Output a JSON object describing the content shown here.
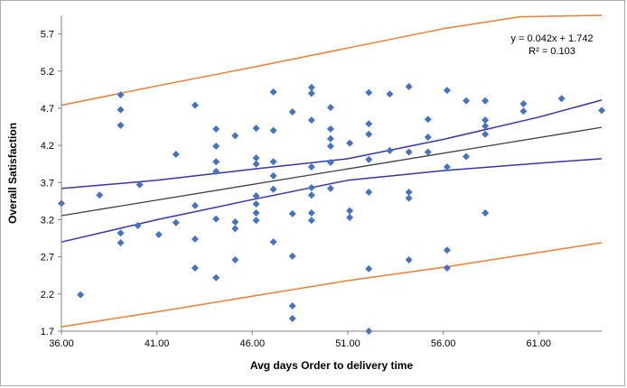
{
  "chart_data": {
    "type": "scatter",
    "title": "",
    "xlabel": "Avg days Order to delivery time",
    "ylabel": "Overall Satisfaction",
    "xlim": [
      36,
      64.3
    ],
    "ylim": [
      1.7,
      5.95
    ],
    "grid": false,
    "x_ticks": [
      36,
      41,
      46,
      51,
      56,
      61
    ],
    "x_tick_labels": [
      "36.00",
      "41.00",
      "46.00",
      "51.00",
      "56.00",
      "61.00"
    ],
    "y_ticks": [
      1.7,
      2.2,
      2.7,
      3.2,
      3.7,
      4.2,
      4.7,
      5.2,
      5.7
    ],
    "y_tick_labels": [
      "1.7",
      "2.2",
      "2.7",
      "3.2",
      "3.7",
      "4.2",
      "4.7",
      "5.2",
      "5.7"
    ],
    "annotation": {
      "line1": "y = 0.042x + 1.742",
      "line2": "R² = 0.103"
    },
    "trendline": {
      "slope": 0.042,
      "intercept": 1.742,
      "r_squared": 0.103,
      "color": "#404040"
    },
    "colors": {
      "marker": "#4472C4",
      "confidence_band": "#3535AE",
      "prediction_band": "#ED7D31",
      "axis": "#808080",
      "trend": "#404040"
    },
    "series": [
      {
        "name": "satisfaction-observations",
        "type": "scatter",
        "marker": "diamond",
        "color": "#4472C4",
        "points": [
          [
            36.0,
            3.42
          ],
          [
            37.0,
            2.19
          ],
          [
            38.0,
            3.53
          ],
          [
            39.1,
            4.88
          ],
          [
            39.1,
            4.68
          ],
          [
            39.1,
            4.47
          ],
          [
            39.1,
            3.02
          ],
          [
            39.1,
            2.89
          ],
          [
            40.0,
            3.12
          ],
          [
            40.1,
            3.67
          ],
          [
            41.1,
            3.0
          ],
          [
            42.0,
            4.08
          ],
          [
            42.0,
            3.16
          ],
          [
            43.0,
            4.74
          ],
          [
            43.0,
            3.39
          ],
          [
            43.0,
            2.94
          ],
          [
            43.0,
            2.55
          ],
          [
            44.1,
            4.42
          ],
          [
            44.1,
            4.19
          ],
          [
            44.1,
            3.98
          ],
          [
            44.1,
            3.85
          ],
          [
            44.1,
            3.21
          ],
          [
            44.1,
            2.42
          ],
          [
            45.1,
            4.33
          ],
          [
            45.1,
            3.17
          ],
          [
            45.1,
            3.08
          ],
          [
            45.1,
            2.66
          ],
          [
            46.2,
            4.43
          ],
          [
            46.2,
            4.03
          ],
          [
            46.2,
            3.95
          ],
          [
            46.2,
            3.52
          ],
          [
            46.2,
            3.41
          ],
          [
            46.2,
            3.29
          ],
          [
            46.2,
            3.19
          ],
          [
            47.1,
            4.92
          ],
          [
            47.1,
            4.4
          ],
          [
            47.1,
            3.98
          ],
          [
            47.1,
            3.79
          ],
          [
            47.1,
            3.61
          ],
          [
            47.1,
            2.9
          ],
          [
            48.1,
            4.65
          ],
          [
            48.1,
            3.28
          ],
          [
            48.1,
            2.71
          ],
          [
            48.1,
            2.04
          ],
          [
            48.1,
            1.87
          ],
          [
            49.1,
            4.98
          ],
          [
            49.1,
            4.9
          ],
          [
            49.1,
            4.54
          ],
          [
            49.1,
            3.91
          ],
          [
            49.1,
            3.63
          ],
          [
            49.1,
            3.53
          ],
          [
            49.1,
            3.29
          ],
          [
            49.1,
            3.19
          ],
          [
            50.1,
            4.71
          ],
          [
            50.1,
            4.42
          ],
          [
            50.1,
            4.29
          ],
          [
            50.1,
            4.19
          ],
          [
            50.1,
            3.97
          ],
          [
            50.1,
            3.62
          ],
          [
            51.1,
            4.23
          ],
          [
            51.1,
            3.32
          ],
          [
            51.1,
            3.23
          ],
          [
            52.1,
            4.91
          ],
          [
            52.1,
            4.49
          ],
          [
            52.1,
            4.35
          ],
          [
            52.1,
            4.01
          ],
          [
            52.1,
            3.57
          ],
          [
            52.1,
            2.54
          ],
          [
            52.1,
            1.7
          ],
          [
            53.2,
            4.89
          ],
          [
            53.2,
            4.13
          ],
          [
            54.2,
            4.99
          ],
          [
            54.2,
            4.11
          ],
          [
            54.2,
            3.57
          ],
          [
            54.2,
            3.49
          ],
          [
            54.2,
            2.66
          ],
          [
            55.2,
            4.55
          ],
          [
            55.2,
            4.31
          ],
          [
            55.2,
            4.11
          ],
          [
            56.2,
            4.94
          ],
          [
            56.2,
            3.91
          ],
          [
            56.2,
            2.79
          ],
          [
            56.2,
            2.55
          ],
          [
            57.2,
            4.8
          ],
          [
            57.2,
            4.05
          ],
          [
            58.2,
            4.8
          ],
          [
            58.2,
            4.54
          ],
          [
            58.2,
            4.46
          ],
          [
            58.2,
            4.35
          ],
          [
            58.2,
            3.29
          ],
          [
            60.2,
            4.76
          ],
          [
            60.2,
            4.66
          ],
          [
            62.2,
            4.83
          ],
          [
            64.3,
            4.67
          ]
        ]
      },
      {
        "name": "confidence-band-upper",
        "type": "line",
        "color": "#3535AE",
        "x": [
          36,
          41,
          46,
          51,
          56,
          61,
          64.3
        ],
        "y": [
          3.62,
          3.73,
          3.88,
          4.02,
          4.28,
          4.58,
          4.81
        ]
      },
      {
        "name": "confidence-band-lower",
        "type": "line",
        "color": "#3535AE",
        "x": [
          36,
          41,
          46,
          51,
          56,
          61,
          64.3
        ],
        "y": [
          2.9,
          3.2,
          3.47,
          3.73,
          3.86,
          3.96,
          4.02
        ]
      },
      {
        "name": "prediction-band-upper",
        "type": "line",
        "color": "#ED7D31",
        "x": [
          36,
          41,
          46,
          51,
          56,
          60,
          64.3
        ],
        "y": [
          4.74,
          5.0,
          5.25,
          5.51,
          5.77,
          5.93,
          5.95
        ]
      },
      {
        "name": "prediction-band-lower",
        "type": "line",
        "color": "#ED7D31",
        "x": [
          36,
          41,
          46,
          51,
          56,
          61,
          64.3
        ],
        "y": [
          1.76,
          1.96,
          2.17,
          2.38,
          2.56,
          2.76,
          2.89
        ]
      }
    ]
  }
}
